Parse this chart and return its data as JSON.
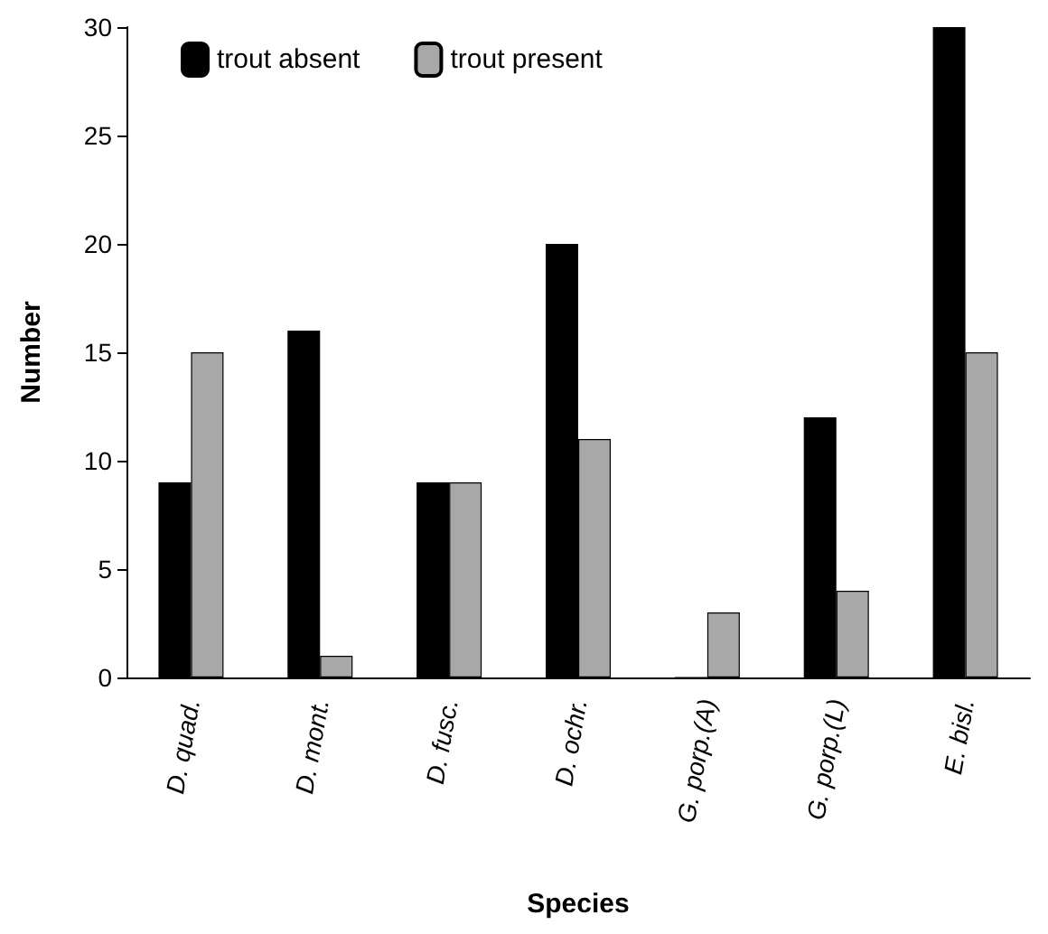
{
  "chart_data": {
    "type": "bar",
    "xlabel": "Species",
    "ylabel": "Number",
    "categories": [
      "D. quad.",
      "D. mont.",
      "D. fusc.",
      "D. ochr.",
      "G. porp.(A)",
      "G. porp.(L)",
      "E. bisl."
    ],
    "series": [
      {
        "name": "trout absent",
        "color": "#000000",
        "values": [
          9,
          16,
          9,
          20,
          0,
          12,
          30
        ]
      },
      {
        "name": "trout present",
        "color": "#a8a8a8",
        "values": [
          15,
          1,
          9,
          11,
          3,
          4,
          15
        ]
      }
    ],
    "ylim": [
      0,
      30
    ],
    "yticks": [
      0,
      5,
      10,
      15,
      20,
      25,
      30
    ],
    "grid": false,
    "legend": "top left"
  }
}
